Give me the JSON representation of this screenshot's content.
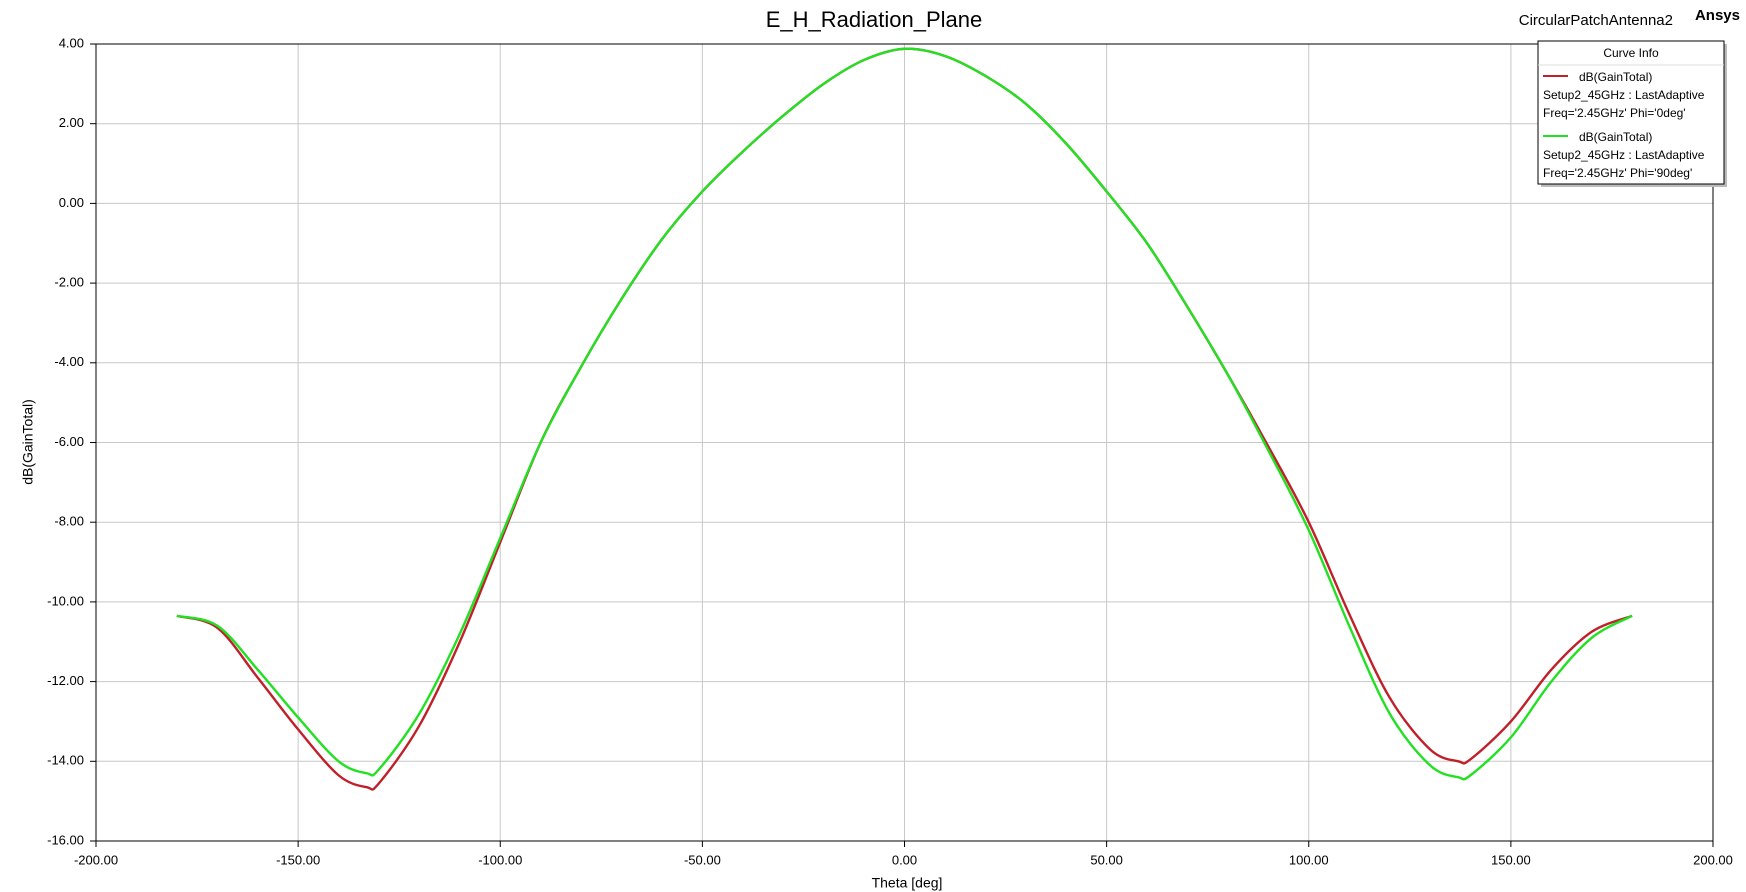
{
  "chart_data": {
    "type": "line",
    "title": "E_H_Radiation_Plane",
    "project": "CircularPatchAntenna2",
    "brand": "Ansys",
    "x_label": "Theta [deg]",
    "y_label": "dB(GainTotal)",
    "legend_title": "Curve Info",
    "legend_position": "upper right",
    "grid": true,
    "x": [
      -180,
      -170,
      -160,
      -150,
      -140,
      -133,
      -130,
      -120,
      -110,
      -100,
      -90,
      -80,
      -70,
      -60,
      -50,
      -40,
      -30,
      -20,
      -10,
      0,
      10,
      20,
      30,
      40,
      50,
      60,
      70,
      80,
      90,
      100,
      110,
      120,
      130,
      137,
      140,
      150,
      160,
      170,
      180
    ],
    "series": [
      {
        "name": "dB(GainTotal)",
        "setup": "Setup2_45GHz : LastAdaptive",
        "variation": "Freq='2.45GHz' Phi='0deg'",
        "color": "#c0202a",
        "values": [
          -10.35,
          -10.65,
          -11.9,
          -13.2,
          -14.35,
          -14.65,
          -14.55,
          -13.1,
          -11.0,
          -8.5,
          -6.0,
          -4.1,
          -2.4,
          -0.9,
          0.3,
          1.3,
          2.2,
          3.0,
          3.6,
          3.88,
          3.7,
          3.2,
          2.5,
          1.5,
          0.3,
          -1.0,
          -2.6,
          -4.3,
          -6.1,
          -8.0,
          -10.3,
          -12.4,
          -13.7,
          -14.0,
          -13.95,
          -13.0,
          -11.7,
          -10.75,
          -10.35
        ]
      },
      {
        "name": "dB(GainTotal)",
        "setup": "Setup2_45GHz : LastAdaptive",
        "variation": "Freq='2.45GHz' Phi='90deg'",
        "color": "#22e022",
        "values": [
          -10.35,
          -10.6,
          -11.7,
          -12.9,
          -14.0,
          -14.3,
          -14.2,
          -12.8,
          -10.8,
          -8.4,
          -6.0,
          -4.1,
          -2.4,
          -0.9,
          0.3,
          1.3,
          2.2,
          3.0,
          3.6,
          3.88,
          3.7,
          3.2,
          2.5,
          1.5,
          0.3,
          -1.0,
          -2.6,
          -4.3,
          -6.2,
          -8.2,
          -10.6,
          -12.8,
          -14.1,
          -14.4,
          -14.35,
          -13.4,
          -12.0,
          -10.9,
          -10.35
        ]
      }
    ],
    "xlim": [
      -200,
      200
    ],
    "xticks": [
      {
        "value": -200,
        "label": "-200.00"
      },
      {
        "value": -150,
        "label": "-150.00"
      },
      {
        "value": -100,
        "label": "-100.00"
      },
      {
        "value": -50,
        "label": "-50.00"
      },
      {
        "value": 0,
        "label": "0.00"
      },
      {
        "value": 50,
        "label": "50.00"
      },
      {
        "value": 100,
        "label": "100.00"
      },
      {
        "value": 150,
        "label": "150.00"
      },
      {
        "value": 200,
        "label": "200.00"
      }
    ],
    "ylim": [
      -16,
      4
    ],
    "yticks": [
      {
        "value": 4,
        "label": "4.00"
      },
      {
        "value": 2,
        "label": "2.00"
      },
      {
        "value": 0,
        "label": "0.00"
      },
      {
        "value": -2,
        "label": "-2.00"
      },
      {
        "value": -4,
        "label": "-4.00"
      },
      {
        "value": -6,
        "label": "-6.00"
      },
      {
        "value": -8,
        "label": "-8.00"
      },
      {
        "value": -10,
        "label": "-10.00"
      },
      {
        "value": -12,
        "label": "-12.00"
      },
      {
        "value": -14,
        "label": "-14.00"
      },
      {
        "value": -16,
        "label": "-16.00"
      }
    ]
  }
}
